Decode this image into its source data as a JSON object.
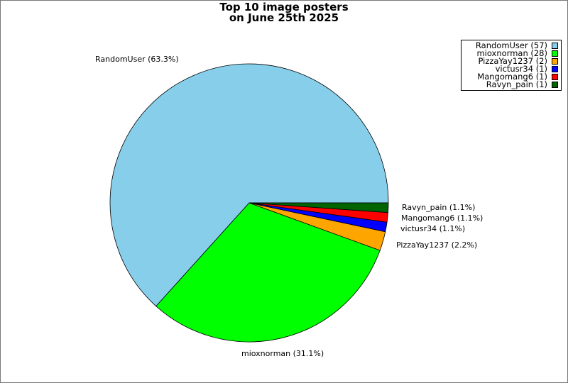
{
  "chart_data": {
    "type": "pie",
    "title_lines": [
      "Top 10 image posters",
      "on June 25th 2025"
    ],
    "slices": [
      {
        "name": "RandomUser",
        "count": 57,
        "percent": 63.3,
        "color": "#87CEEB"
      },
      {
        "name": "mioxnorman",
        "count": 28,
        "percent": 31.1,
        "color": "#00FF00"
      },
      {
        "name": "PizzaYay1237",
        "count": 2,
        "percent": 2.2,
        "color": "#FFA500"
      },
      {
        "name": "victusr34",
        "count": 1,
        "percent": 1.1,
        "color": "#0000FF"
      },
      {
        "name": "Mangomang6",
        "count": 1,
        "percent": 1.1,
        "color": "#FF0000"
      },
      {
        "name": "Ravyn_pain",
        "count": 1,
        "percent": 1.1,
        "color": "#006400"
      }
    ],
    "slice_labels": [
      "RandomUser (63.3%)",
      "mioxnorman (31.1%)",
      "PizzaYay1237 (2.2%)",
      "victusr34 (1.1%)",
      "Mangomang6 (1.1%)",
      "Ravyn_pain (1.1%)"
    ],
    "legend": {
      "placement": "top-right",
      "entries": [
        "RandomUser (57)",
        "mioxnorman (28)",
        "PizzaYay1237 (2)",
        "victusr34 (1)",
        "Mangomang6 (1)",
        "Ravyn_pain (1)"
      ]
    }
  }
}
